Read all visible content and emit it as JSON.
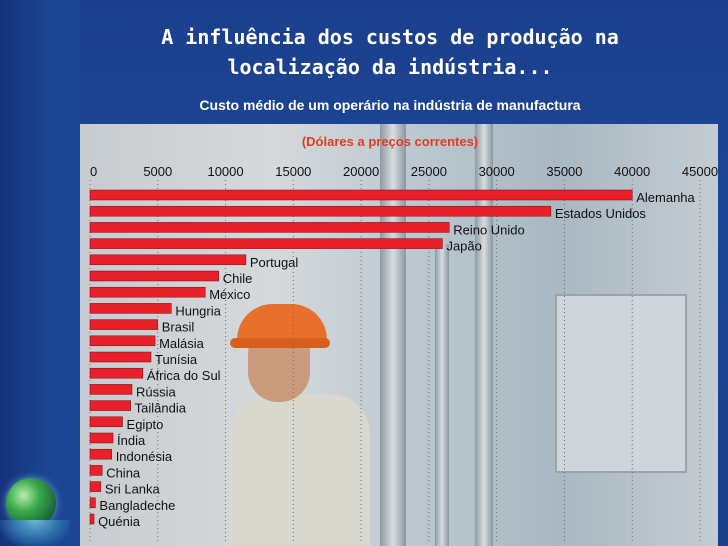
{
  "slide": {
    "title_line1": "A influência dos custos de produção na",
    "title_line2": "localização da indústria...",
    "subtitle": "Custo médio de um operário na indústria de manufactura"
  },
  "colors": {
    "bar": "#e8202a",
    "accent_title": "#e23b1f"
  },
  "chart_data": {
    "type": "bar",
    "orientation": "horizontal",
    "title": "(Dólares a preços correntes)",
    "xlim": [
      0,
      45000
    ],
    "x_ticks": [
      0,
      5000,
      10000,
      15000,
      20000,
      25000,
      30000,
      35000,
      40000,
      45000
    ],
    "x_tick_labels": [
      "0",
      "5000",
      "10000",
      "15000",
      "20000",
      "25000",
      "30000",
      "35000",
      "40000",
      "45000"
    ],
    "grid": true,
    "categories": [
      "Alemanha",
      "Estados Unidos",
      "Reino Unido",
      "Japão",
      "Portugal",
      "Chile",
      "México",
      "Hungria",
      "Brasil",
      "Malásia",
      "Tunísia",
      "África do Sul",
      "Rússia",
      "Tailândia",
      "Egipto",
      "Índia",
      "Indonésia",
      "China",
      "Sri Lanka",
      "Bangladeche",
      "Quénia"
    ],
    "values": [
      40000,
      34000,
      26500,
      26000,
      11500,
      9500,
      8500,
      6000,
      5000,
      4800,
      4500,
      3900,
      3100,
      3000,
      2400,
      1700,
      1600,
      900,
      800,
      400,
      300
    ]
  }
}
